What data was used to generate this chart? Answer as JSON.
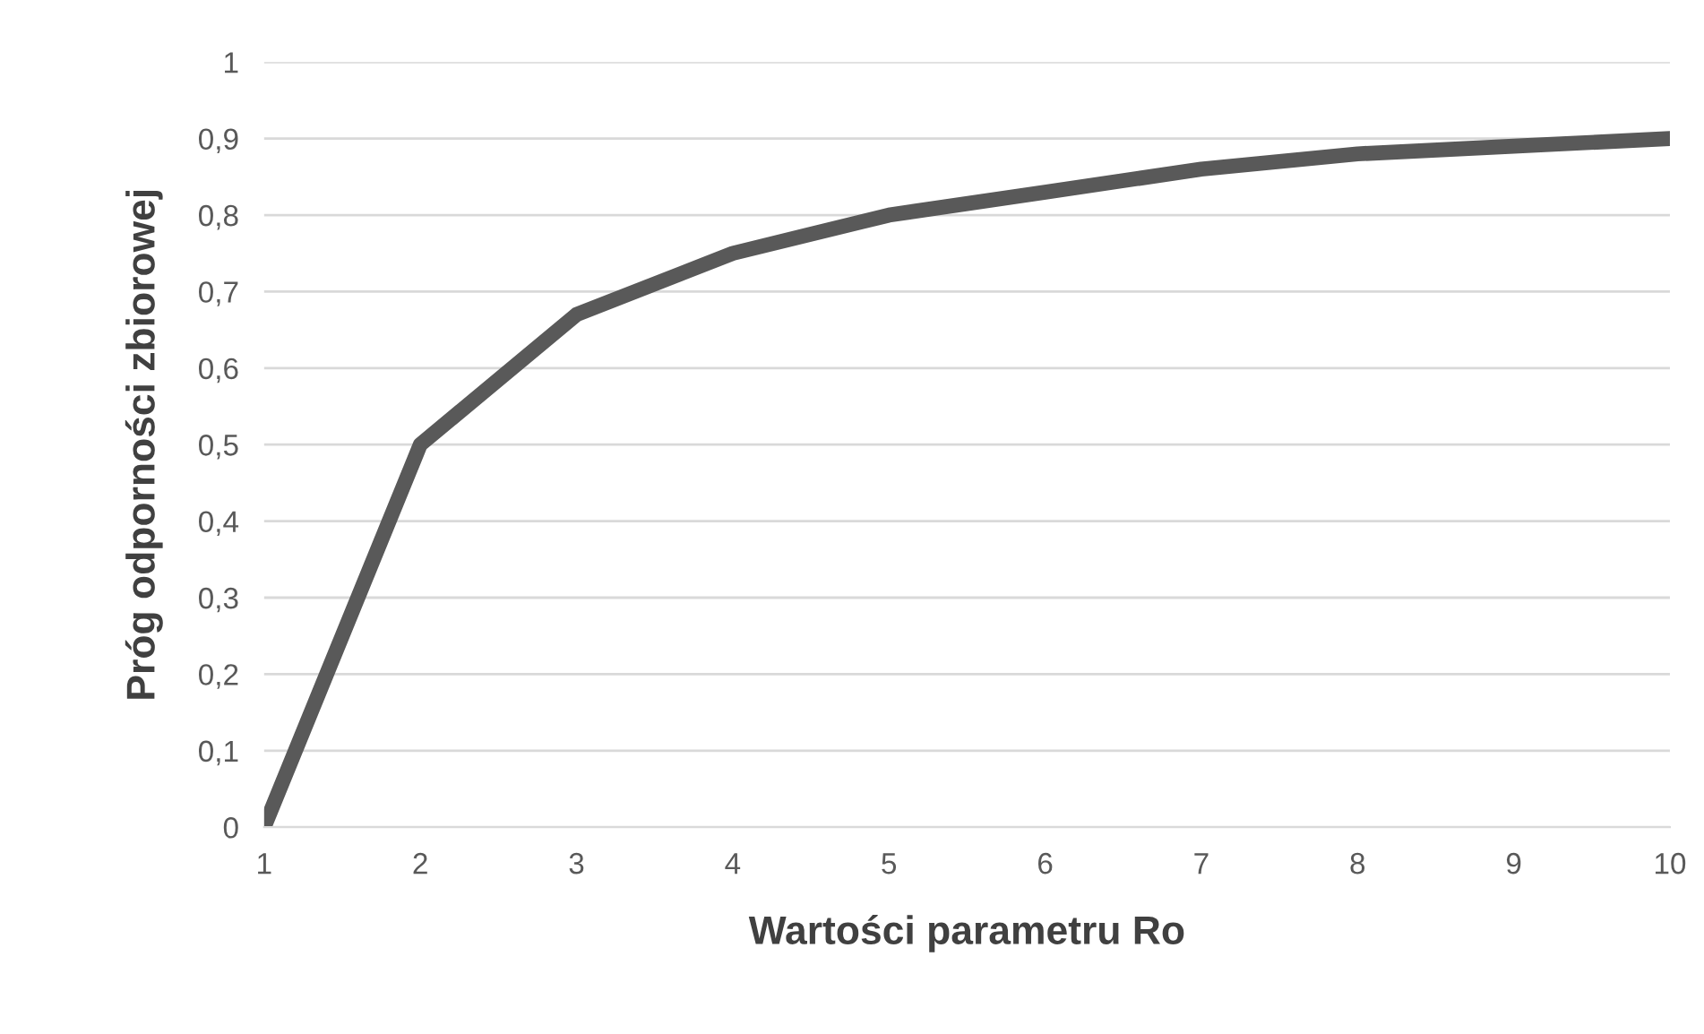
{
  "chart_data": {
    "type": "line",
    "xlabel": "Wartości parametru Ro",
    "ylabel": "Próg odporności zbiorowej",
    "x": [
      1,
      2,
      3,
      4,
      5,
      6,
      7,
      8,
      9,
      10
    ],
    "series": [
      {
        "color": "#595959",
        "values": [
          0,
          0.5,
          0.67,
          0.75,
          0.8,
          0.83,
          0.86,
          0.88,
          0.89,
          0.9
        ]
      }
    ],
    "xlim": [
      1,
      10
    ],
    "xticks": [
      1,
      2,
      3,
      4,
      5,
      6,
      7,
      8,
      9,
      10
    ],
    "ylim": [
      0,
      1
    ],
    "yticks": [
      0,
      {
        "value": 0.1,
        "label": "0,1"
      },
      {
        "value": 0.2,
        "label": "0,2"
      },
      {
        "value": 0.3,
        "label": "0,3"
      },
      {
        "value": 0.4,
        "label": "0,4"
      },
      {
        "value": 0.5,
        "label": "0,5"
      },
      {
        "value": 0.6,
        "label": "0,6"
      },
      {
        "value": 0.7,
        "label": "0,7"
      },
      {
        "value": 0.8,
        "label": "0,8"
      },
      {
        "value": 0.9,
        "label": "0,9"
      },
      1
    ],
    "grid": "y",
    "legend": false,
    "marker": "none",
    "line_style": "solid"
  }
}
